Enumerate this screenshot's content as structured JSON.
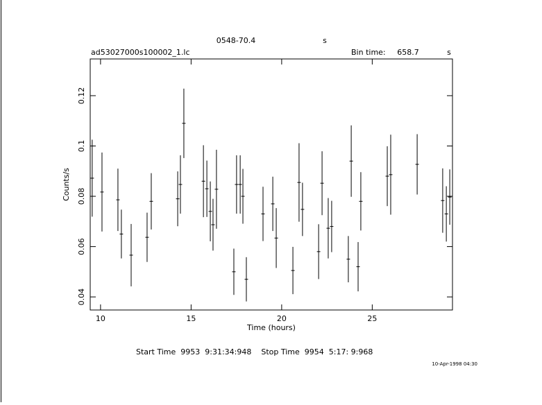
{
  "chart_data": {
    "type": "scatter",
    "title": "0548-70.4",
    "title_unit": "s",
    "subtitle": "ad53027000s100002_1.lc",
    "bin_time_label": "Bin time:",
    "bin_time": "658.7",
    "bin_time_unit": "s",
    "xlabel": "Time (hours)",
    "ylabel": "Counts/s",
    "footer": "Start Time  9953  9:31:34:948    Stop Time  9954  5:17: 9:968",
    "timestamp": "10-Apr-1998 04:30",
    "xlim": [
      9.43,
      29.43
    ],
    "xticks": [
      10,
      15,
      20,
      25
    ],
    "ylim": [
      0.0348,
      0.1346
    ],
    "yticks": [
      0.04,
      0.06,
      0.08,
      0.1,
      0.12
    ],
    "x": [
      9.54,
      10.08,
      10.96,
      11.15,
      11.69,
      12.57,
      12.8,
      14.26,
      14.41,
      14.6,
      15.68,
      15.87,
      16.06,
      16.21,
      16.4,
      17.36,
      17.51,
      17.71,
      17.86,
      18.05,
      18.97,
      19.51,
      19.7,
      20.62,
      20.96,
      21.15,
      22.04,
      22.23,
      22.57,
      22.76,
      23.68,
      23.84,
      24.22,
      24.37,
      25.83,
      26.02,
      27.48,
      28.89,
      29.09,
      29.28
    ],
    "series": [
      {
        "color": "#000000",
        "values": [
          0.0872,
          0.0817,
          0.0786,
          0.065,
          0.0566,
          0.0637,
          0.078,
          0.079,
          0.0847,
          0.109,
          0.086,
          0.083,
          0.074,
          0.0687,
          0.0828,
          0.05,
          0.0847,
          0.0847,
          0.08,
          0.047,
          0.073,
          0.077,
          0.0634,
          0.0505,
          0.0855,
          0.0748,
          0.058,
          0.0852,
          0.0673,
          0.068,
          0.055,
          0.094,
          0.052,
          0.078,
          0.088,
          0.0886,
          0.0927,
          0.0783,
          0.073,
          0.0797
        ],
        "errors": [
          0.0153,
          0.0157,
          0.0124,
          0.0097,
          0.0124,
          0.0098,
          0.0112,
          0.0109,
          0.0116,
          0.0138,
          0.0143,
          0.0112,
          0.0119,
          0.0103,
          0.0157,
          0.0092,
          0.0116,
          0.0116,
          0.0109,
          0.0088,
          0.0108,
          0.0108,
          0.0119,
          0.0094,
          0.0156,
          0.0106,
          0.0109,
          0.0127,
          0.012,
          0.0102,
          0.0092,
          0.0142,
          0.0098,
          0.0116,
          0.0119,
          0.0159,
          0.012,
          0.0128,
          0.011,
          0.011
        ]
      }
    ]
  }
}
